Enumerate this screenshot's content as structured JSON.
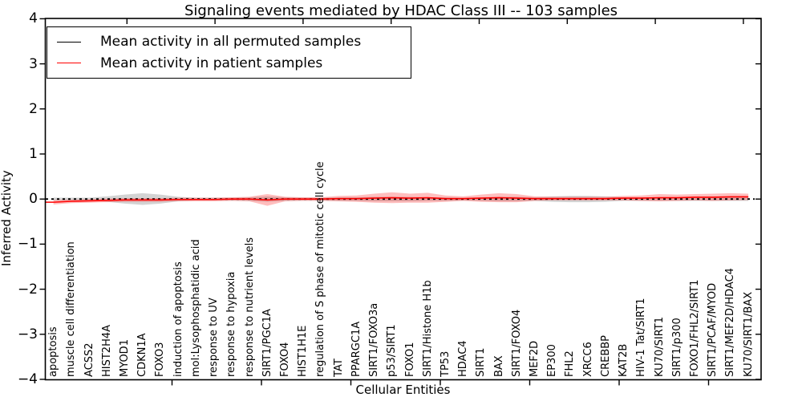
{
  "colors": {
    "background": "#ffffff",
    "axis": "#000000",
    "permuted_line": "#000000",
    "patient_line": "#ff0000",
    "permuted_band": "rgba(130,130,130,0.35)",
    "patient_band": "rgba(255,40,40,0.30)"
  },
  "chart_data": {
    "type": "line",
    "title": "Signaling events mediated by HDAC Class III -- 103 samples",
    "xlabel": "Cellular Entities",
    "ylabel": "Inferred Activity",
    "ylim": [
      -4,
      4
    ],
    "yticks": [
      4,
      3,
      2,
      1,
      0,
      -1,
      -2,
      -3,
      -4
    ],
    "grid": false,
    "legend_position": "upper left",
    "categories": [
      "apoptosis",
      "muscle cell differentiation",
      "ACSS2",
      "HIST2H4A",
      "MYOD1",
      "CDKN1A",
      "FOXO3",
      "induction of apoptosis",
      "mol:Lysophosphatidic acid",
      "response to UV",
      "response to hypoxia",
      "response to nutrient levels",
      "SIRT1/PGC1A",
      "FOXO4",
      "HIST1H1E",
      "regulation of S phase of mitotic cell cycle",
      "TAT",
      "PPARGC1A",
      "SIRT1/FOXO3a",
      "p53/SIRT1",
      "FOXO1",
      "SIRT1/Histone H1b",
      "TP53",
      "HDAC4",
      "SIRT1",
      "BAX",
      "SIRT1/FOXO4",
      "MEF2D",
      "EP300",
      "FHL2",
      "XRCC6",
      "CREBBP",
      "KAT2B",
      "HIV-1 Tat/SIRT1",
      "KU70/SIRT1",
      "SIRT1/p300",
      "FOXO1/FHL2/SIRT1",
      "SIRT1/PCAF/MYOD",
      "SIRT1/MEF2D/HDAC4",
      "KU70/SIRT1/BAX"
    ],
    "series": [
      {
        "name": "Mean activity in all permuted samples",
        "color": "#000000",
        "style": "dashed",
        "values": [
          0,
          0,
          0,
          0,
          0,
          0,
          0,
          0,
          0,
          0,
          0,
          0,
          0,
          0,
          0,
          0,
          0,
          0,
          0,
          0,
          0,
          0,
          0,
          0,
          0,
          0,
          0,
          0,
          0,
          0,
          0,
          0,
          0,
          0,
          0,
          0,
          0,
          0,
          0,
          0
        ]
      },
      {
        "name": "Mean activity in patient samples",
        "color": "#ff0000",
        "style": "solid",
        "values": [
          -0.07,
          -0.05,
          -0.04,
          -0.03,
          -0.02,
          -0.02,
          -0.02,
          -0.01,
          -0.01,
          -0.01,
          0,
          0,
          -0.02,
          0,
          0,
          0,
          0.01,
          0.01,
          0.02,
          0.03,
          0.02,
          0.03,
          0.01,
          0.01,
          0.02,
          0.03,
          0.02,
          0.01,
          0.01,
          0.01,
          0.01,
          0.01,
          0.02,
          0.02,
          0.03,
          0.03,
          0.04,
          0.04,
          0.05,
          0.05
        ]
      }
    ],
    "bands": [
      {
        "series": "Mean activity in all permuted samples",
        "color": "rgba(130,130,130,0.35)",
        "halfwidths": [
          0.03,
          0.03,
          0.03,
          0.06,
          0.1,
          0.13,
          0.1,
          0.05,
          0.03,
          0.03,
          0.03,
          0.04,
          0.06,
          0.04,
          0.03,
          0.03,
          0.04,
          0.04,
          0.05,
          0.05,
          0.05,
          0.04,
          0.04,
          0.03,
          0.04,
          0.05,
          0.05,
          0.04,
          0.06,
          0.07,
          0.07,
          0.06,
          0.04,
          0.04,
          0.04,
          0.04,
          0.04,
          0.04,
          0.04,
          0.04
        ]
      },
      {
        "series": "Mean activity in patient samples",
        "color": "rgba(255,40,40,0.30)",
        "halfwidths": [
          0.05,
          0.04,
          0.04,
          0.04,
          0.04,
          0.04,
          0.04,
          0.04,
          0.04,
          0.04,
          0.04,
          0.05,
          0.13,
          0.05,
          0.04,
          0.04,
          0.06,
          0.07,
          0.1,
          0.12,
          0.1,
          0.11,
          0.07,
          0.05,
          0.08,
          0.1,
          0.09,
          0.05,
          0.04,
          0.04,
          0.04,
          0.04,
          0.05,
          0.06,
          0.08,
          0.07,
          0.07,
          0.08,
          0.08,
          0.07
        ]
      }
    ]
  }
}
